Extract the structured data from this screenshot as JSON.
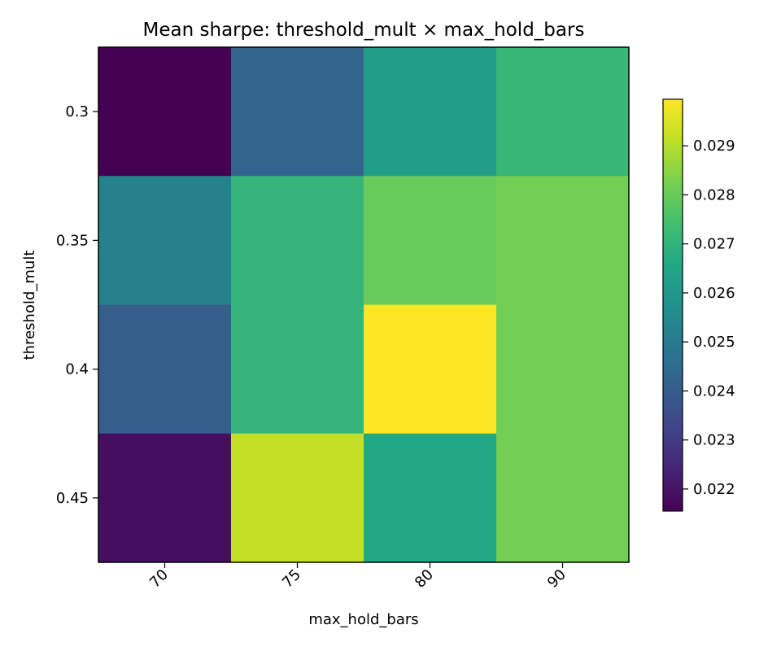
{
  "chart_data": {
    "type": "heatmap",
    "title": "Mean sharpe: threshold_mult × max_hold_bars",
    "xlabel": "max_hold_bars",
    "ylabel": "threshold_mult",
    "x_categories": [
      "70",
      "75",
      "80",
      "90"
    ],
    "y_categories": [
      "0.3",
      "0.35",
      "0.4",
      "0.45"
    ],
    "values": [
      [
        0.02155,
        0.02425,
        0.0262,
        0.0271
      ],
      [
        0.0252,
        0.02705,
        0.028,
        0.02815
      ],
      [
        0.02405,
        0.02705,
        0.02995,
        0.02815
      ],
      [
        0.02185,
        0.0292,
        0.0266,
        0.02815
      ]
    ],
    "colorbar": {
      "min": 0.02155,
      "max": 0.02995,
      "ticks": [
        "0.022",
        "0.023",
        "0.024",
        "0.025",
        "0.026",
        "0.027",
        "0.028",
        "0.029"
      ]
    },
    "colormap": "viridis",
    "grid": false
  }
}
